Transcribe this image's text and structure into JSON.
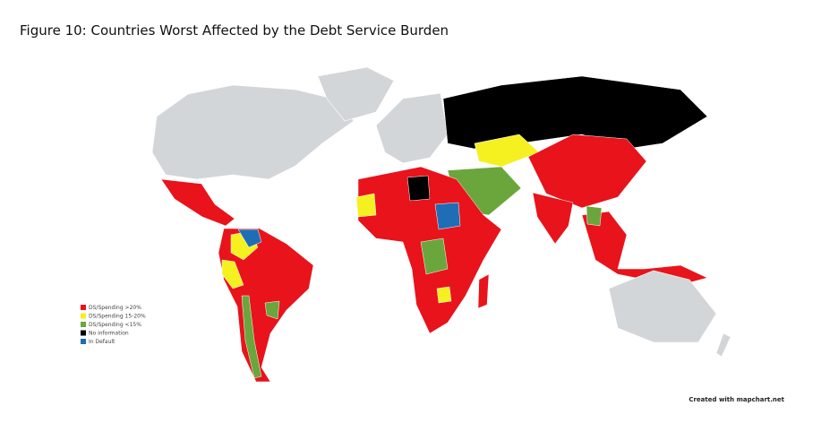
{
  "title": "Figure 10: Countries Worst Affected by the Debt Service Burden",
  "legend": [
    {
      "label": "DS/Spending >20%",
      "color": "#e8131b"
    },
    {
      "label": "DS/Spending 15-20%",
      "color": "#f5f020"
    },
    {
      "label": "DS/Spending <15%",
      "color": "#6aa63c"
    },
    {
      "label": "No information",
      "color": "#000000"
    },
    {
      "label": "In Default",
      "color": "#1f6db5"
    }
  ],
  "credit": "Created with mapchart.net"
}
